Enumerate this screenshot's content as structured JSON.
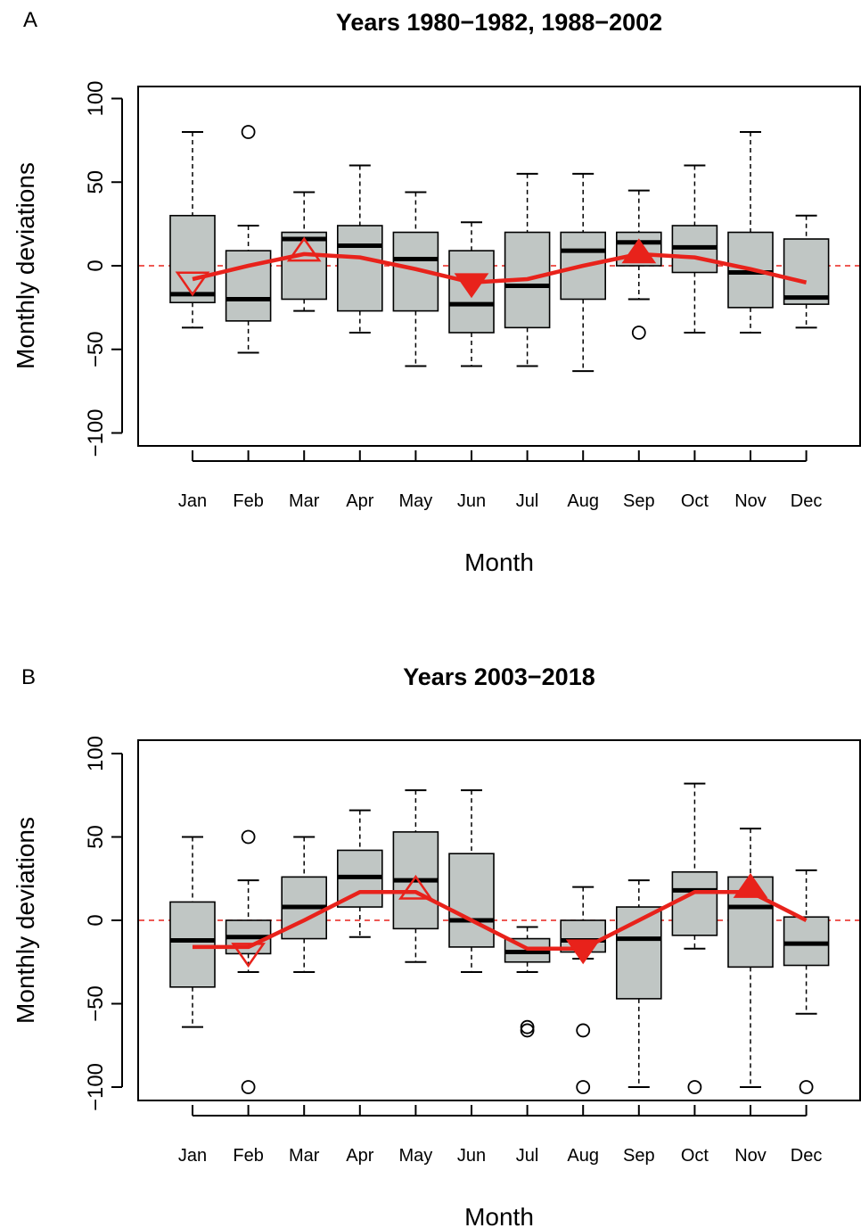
{
  "chart_data": [
    {
      "panel": "A",
      "type": "box",
      "title": "Years 1980−1982, 1988−2002",
      "xlabel": "Month",
      "ylabel": "Monthly deviations",
      "ylim": [
        -100,
        100
      ],
      "yticks": [
        "−100",
        "−50",
        "0",
        "50",
        "100"
      ],
      "categories": [
        "Jan",
        "Feb",
        "Mar",
        "Apr",
        "May",
        "Jun",
        "Jul",
        "Aug",
        "Sep",
        "Oct",
        "Nov",
        "Dec"
      ],
      "reference_line": 0,
      "boxes": [
        {
          "min": -37,
          "q1": -22,
          "median": -17,
          "q3": 30,
          "max": 80,
          "outliers": []
        },
        {
          "min": -52,
          "q1": -33,
          "median": -20,
          "q3": 9,
          "max": 24,
          "outliers": [
            80
          ]
        },
        {
          "min": -27,
          "q1": -20,
          "median": 16,
          "q3": 20,
          "max": 44,
          "outliers": []
        },
        {
          "min": -40,
          "q1": -27,
          "median": 12,
          "q3": 24,
          "max": 60,
          "outliers": []
        },
        {
          "min": -60,
          "q1": -27,
          "median": 4,
          "q3": 20,
          "max": 44,
          "outliers": []
        },
        {
          "min": -60,
          "q1": -40,
          "median": -23,
          "q3": 9,
          "max": 26,
          "outliers": []
        },
        {
          "min": -60,
          "q1": -37,
          "median": -12,
          "q3": 20,
          "max": 55,
          "outliers": []
        },
        {
          "min": -63,
          "q1": -20,
          "median": 9,
          "q3": 20,
          "max": 55,
          "outliers": []
        },
        {
          "min": -20,
          "q1": 0,
          "median": 14,
          "q3": 20,
          "max": 45,
          "outliers": [
            -40
          ]
        },
        {
          "min": -40,
          "q1": -4,
          "median": 11,
          "q3": 24,
          "max": 60,
          "outliers": []
        },
        {
          "min": -40,
          "q1": -25,
          "median": -4,
          "q3": 20,
          "max": 80,
          "outliers": []
        },
        {
          "min": -37,
          "q1": -23,
          "median": -19,
          "q3": 16,
          "max": 30,
          "outliers": []
        }
      ],
      "trend_line": {
        "color": "#e8221b",
        "values": [
          -8,
          0,
          7,
          5,
          -2,
          -10,
          -8,
          0,
          7,
          5,
          -2,
          -10
        ],
        "markers": [
          {
            "month": "Jan",
            "value": -9,
            "shape": "triangle-down",
            "filled": false
          },
          {
            "month": "Mar",
            "value": 8,
            "shape": "triangle-up",
            "filled": false
          },
          {
            "month": "Jun",
            "value": -10,
            "shape": "triangle-down",
            "filled": true
          },
          {
            "month": "Sep",
            "value": 7,
            "shape": "triangle-up",
            "filled": true
          }
        ]
      },
      "box_fill": "#c0c6c4"
    },
    {
      "panel": "B",
      "type": "box",
      "title": "Years 2003−2018",
      "xlabel": "Month",
      "ylabel": "Monthly deviations",
      "ylim": [
        -100,
        100
      ],
      "yticks": [
        "−100",
        "−50",
        "0",
        "50",
        "100"
      ],
      "categories": [
        "Jan",
        "Feb",
        "Mar",
        "Apr",
        "May",
        "Jun",
        "Jul",
        "Aug",
        "Sep",
        "Oct",
        "Nov",
        "Dec"
      ],
      "reference_line": 0,
      "boxes": [
        {
          "min": -64,
          "q1": -40,
          "median": -12,
          "q3": 11,
          "max": 50,
          "outliers": []
        },
        {
          "min": -31,
          "q1": -20,
          "median": -10,
          "q3": 0,
          "max": 24,
          "outliers": [
            50,
            -100
          ]
        },
        {
          "min": -31,
          "q1": -11,
          "median": 8,
          "q3": 26,
          "max": 50,
          "outliers": []
        },
        {
          "min": -10,
          "q1": 8,
          "median": 26,
          "q3": 42,
          "max": 66,
          "outliers": []
        },
        {
          "min": -25,
          "q1": -5,
          "median": 24,
          "q3": 53,
          "max": 78,
          "outliers": []
        },
        {
          "min": -31,
          "q1": -16,
          "median": 0,
          "q3": 40,
          "max": 78,
          "outliers": []
        },
        {
          "min": -31,
          "q1": -25,
          "median": -19,
          "q3": -11,
          "max": -4,
          "outliers": [
            -64,
            -66
          ]
        },
        {
          "min": -23,
          "q1": -19,
          "median": -12,
          "q3": 0,
          "max": 20,
          "outliers": [
            -66,
            -100
          ]
        },
        {
          "min": -100,
          "q1": -47,
          "median": -11,
          "q3": 8,
          "max": 24,
          "outliers": []
        },
        {
          "min": -17,
          "q1": -9,
          "median": 18,
          "q3": 29,
          "max": 82,
          "outliers": [
            -100
          ]
        },
        {
          "min": -100,
          "q1": -28,
          "median": 8,
          "q3": 26,
          "max": 55,
          "outliers": []
        },
        {
          "min": -56,
          "q1": -27,
          "median": -14,
          "q3": 2,
          "max": 30,
          "outliers": [
            -100
          ]
        }
      ],
      "trend_line": {
        "color": "#e8221b",
        "values": [
          -16,
          -16,
          0,
          17,
          17,
          0,
          -17,
          -17,
          0,
          17,
          17,
          0
        ],
        "markers": [
          {
            "month": "Feb",
            "value": -19,
            "shape": "triangle-down",
            "filled": false
          },
          {
            "month": "May",
            "value": 18,
            "shape": "triangle-up",
            "filled": false
          },
          {
            "month": "Aug",
            "value": -17,
            "shape": "triangle-down",
            "filled": true
          },
          {
            "month": "Nov",
            "value": 19,
            "shape": "triangle-up",
            "filled": true
          }
        ]
      },
      "box_fill": "#c0c6c4"
    }
  ]
}
